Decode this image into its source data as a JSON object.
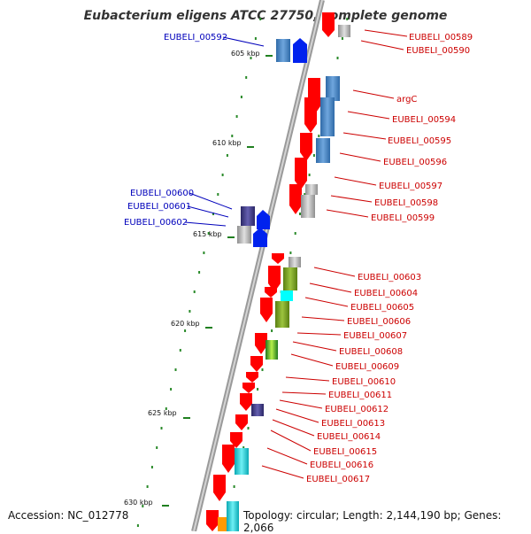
{
  "header": {
    "title": "Eubacterium eligens ATCC 27750, complete genome",
    "accession": "Accession: NC_012778",
    "topology": "Topology: circular; Length: 2,144,190 bp; Genes: 2,066"
  },
  "colors": {
    "forward_label": "#0000bb",
    "reverse_label": "#cc0000",
    "gene_red": "#ff0000",
    "gene_blue": "#0022ee",
    "steel": "#4b86c4",
    "olive": "#7ba02a",
    "cyan": "#18c8d0",
    "navy": "#3d3a7e",
    "dot_green": "#2a8a2a"
  },
  "scale_ticks": [
    "605 kbp",
    "610 kbp",
    "615 kbp",
    "620 kbp",
    "625 kbp",
    "630 kbp"
  ],
  "forward_labels": [
    "EUBELI_00592",
    "EUBELI_00600",
    "EUBELI_00601",
    "EUBELI_00602"
  ],
  "reverse_labels": [
    "EUBELI_00589",
    "EUBELI_00590",
    "argC",
    "EUBELI_00594",
    "EUBELI_00595",
    "EUBELI_00596",
    "EUBELI_00597",
    "EUBELI_00598",
    "EUBELI_00599",
    "EUBELI_00603",
    "EUBELI_00604",
    "EUBELI_00605",
    "EUBELI_00606",
    "EUBELI_00607",
    "EUBELI_00608",
    "EUBELI_00609",
    "EUBELI_00610",
    "EUBELI_00611",
    "EUBELI_00612",
    "EUBELI_00613",
    "EUBELI_00614",
    "EUBELI_00615",
    "EUBELI_00616",
    "EUBELI_00617"
  ]
}
